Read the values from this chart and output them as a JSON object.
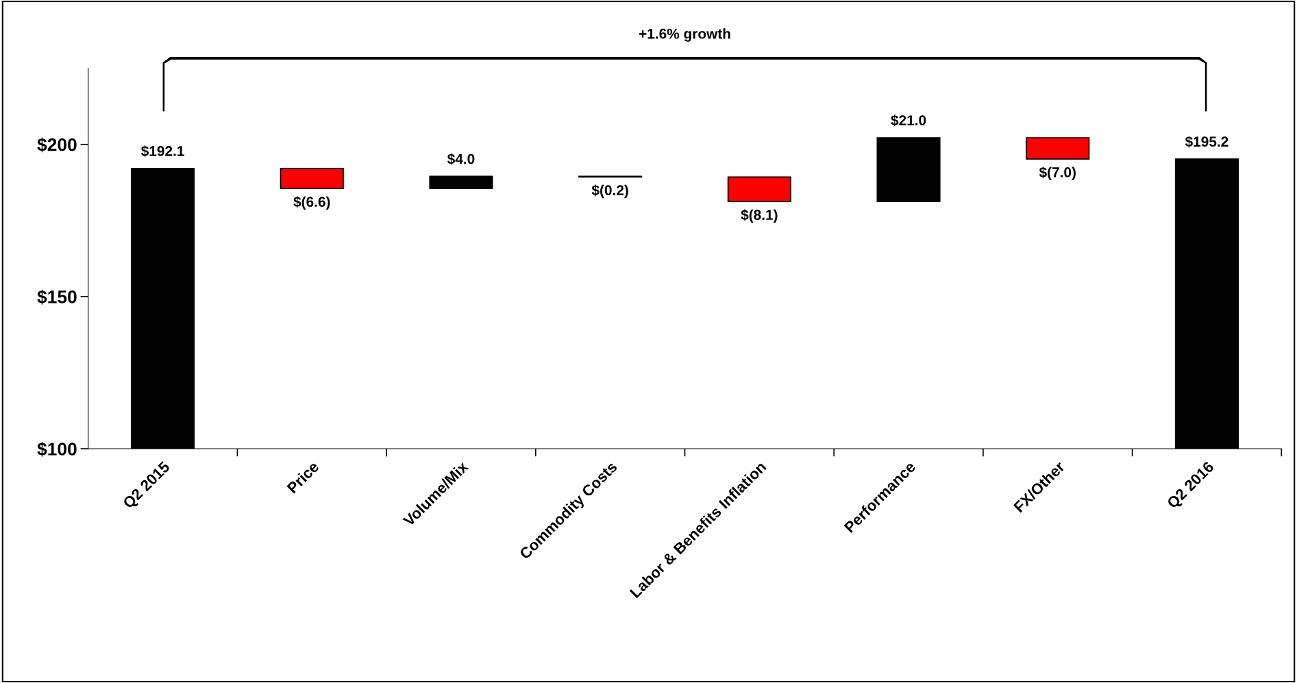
{
  "chart_data": {
    "type": "bar",
    "categories": [
      "Q2 2015",
      "Price",
      "Volume/Mix",
      "Commodity Costs",
      "Labor & Benefits Inflation",
      "Performance",
      "FX/Other",
      "Q2 2016"
    ],
    "values": [
      192.1,
      -6.6,
      4.0,
      -0.2,
      -8.1,
      21.0,
      -7.0,
      195.2
    ],
    "base": [
      null,
      192.1,
      185.5,
      189.5,
      189.3,
      181.2,
      202.2,
      null
    ],
    "colors": [
      "#000000",
      "#ff0000",
      "#000000",
      "#000000",
      "#ff0000",
      "#000000",
      "#ff0000",
      "#000000"
    ],
    "value_labels": [
      "$192.1",
      "$(6.6)",
      "$4.0",
      "$(0.2)",
      "$(8.1)",
      "$21.0",
      "$(7.0)",
      "$195.2"
    ],
    "ylim": [
      100,
      225
    ],
    "yticks": [
      {
        "value": 100,
        "label": "$100"
      },
      {
        "value": 150,
        "label": "$150"
      },
      {
        "value": 200,
        "label": "$200"
      }
    ],
    "annotations": [
      "+1.6% growth"
    ]
  }
}
